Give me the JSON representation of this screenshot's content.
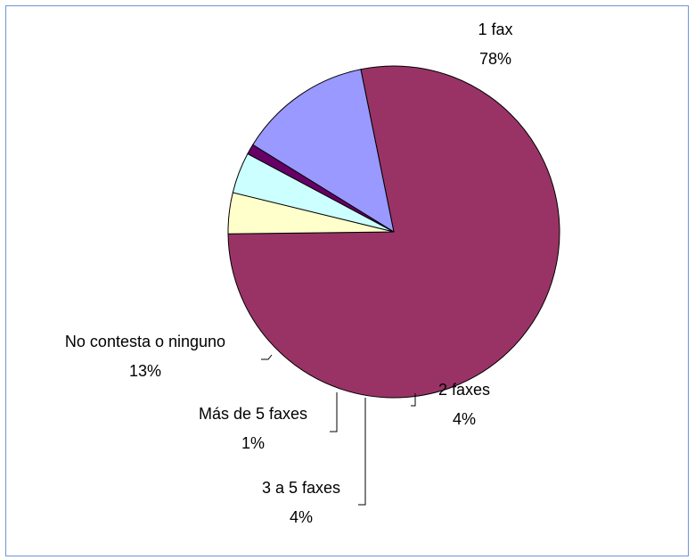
{
  "chart_data": {
    "type": "pie",
    "title": "",
    "slices": [
      {
        "label": "1 fax",
        "value": 78,
        "percent_label": "78%",
        "color": "#993366"
      },
      {
        "label": "2 faxes",
        "value": 4,
        "percent_label": "4%",
        "color": "#ffffcc"
      },
      {
        "label": "3 a 5 faxes",
        "value": 4,
        "percent_label": "4%",
        "color": "#ccffff"
      },
      {
        "label": "Más de 5 faxes",
        "value": 1,
        "percent_label": "1%",
        "color": "#660066"
      },
      {
        "label": "No contesta o ninguno",
        "value": 13,
        "percent_label": "13%",
        "color": "#9999ff"
      }
    ],
    "legend": "none"
  },
  "colors": {
    "frame_border": "#6f94d6",
    "outline": "#000000"
  }
}
